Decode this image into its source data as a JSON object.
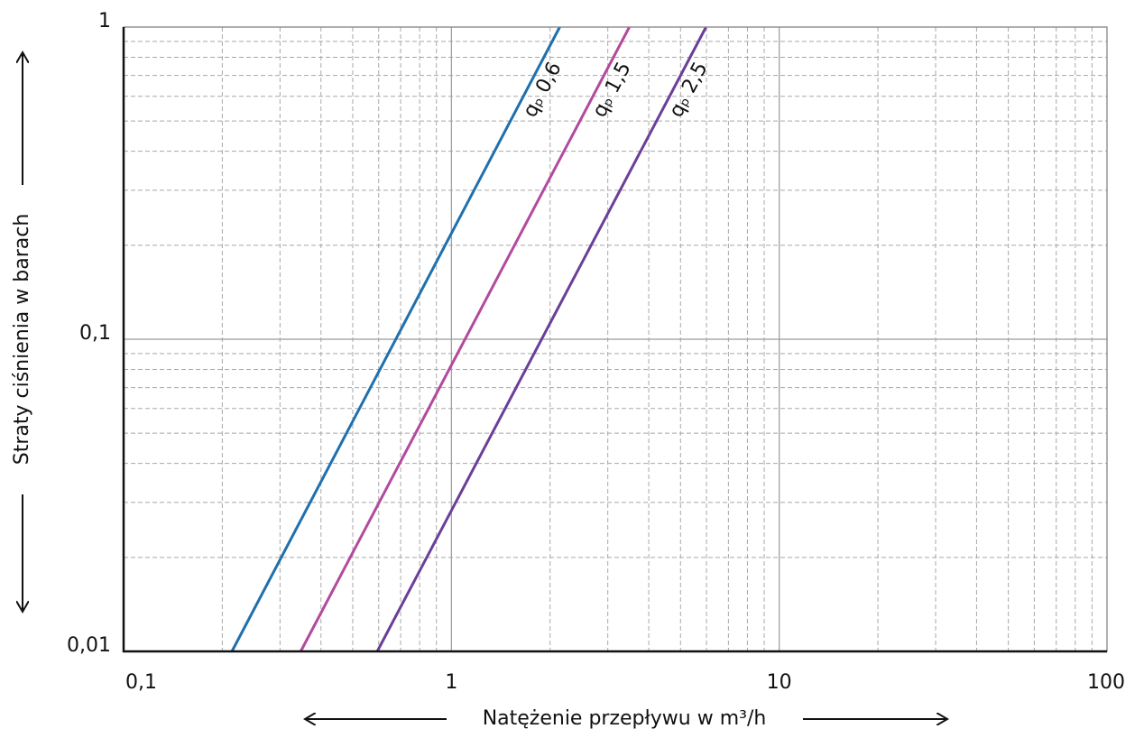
{
  "chart_data": {
    "type": "line",
    "x_label": "Natężenie przepływu w m³/h",
    "y_label": "Straty ciśnienia w barach",
    "xlog": true,
    "ylog": true,
    "grid": true,
    "minor_grid": true,
    "xlim": [
      0.1,
      100
    ],
    "ylim": [
      0.01,
      1
    ],
    "xticks": [
      {
        "value": 0.1,
        "label": "0,1"
      },
      1,
      10,
      100
    ],
    "yticks": [
      {
        "value": 0.01,
        "label": "0,01"
      },
      {
        "value": 0.1,
        "label": "0,1"
      },
      1
    ],
    "series": [
      {
        "name": "qₚ 0,6",
        "color": "#1f70ad",
        "x": [
          0.214,
          2.14
        ],
        "values": [
          0.01,
          1
        ]
      },
      {
        "name": "qₚ 1,5",
        "color": "#b24a9e",
        "x": [
          0.347,
          3.49
        ],
        "values": [
          0.01,
          1
        ]
      },
      {
        "name": "qₚ 2,5",
        "color": "#6b3f98",
        "x": [
          0.594,
          5.98
        ],
        "values": [
          0.01,
          1
        ]
      }
    ]
  }
}
